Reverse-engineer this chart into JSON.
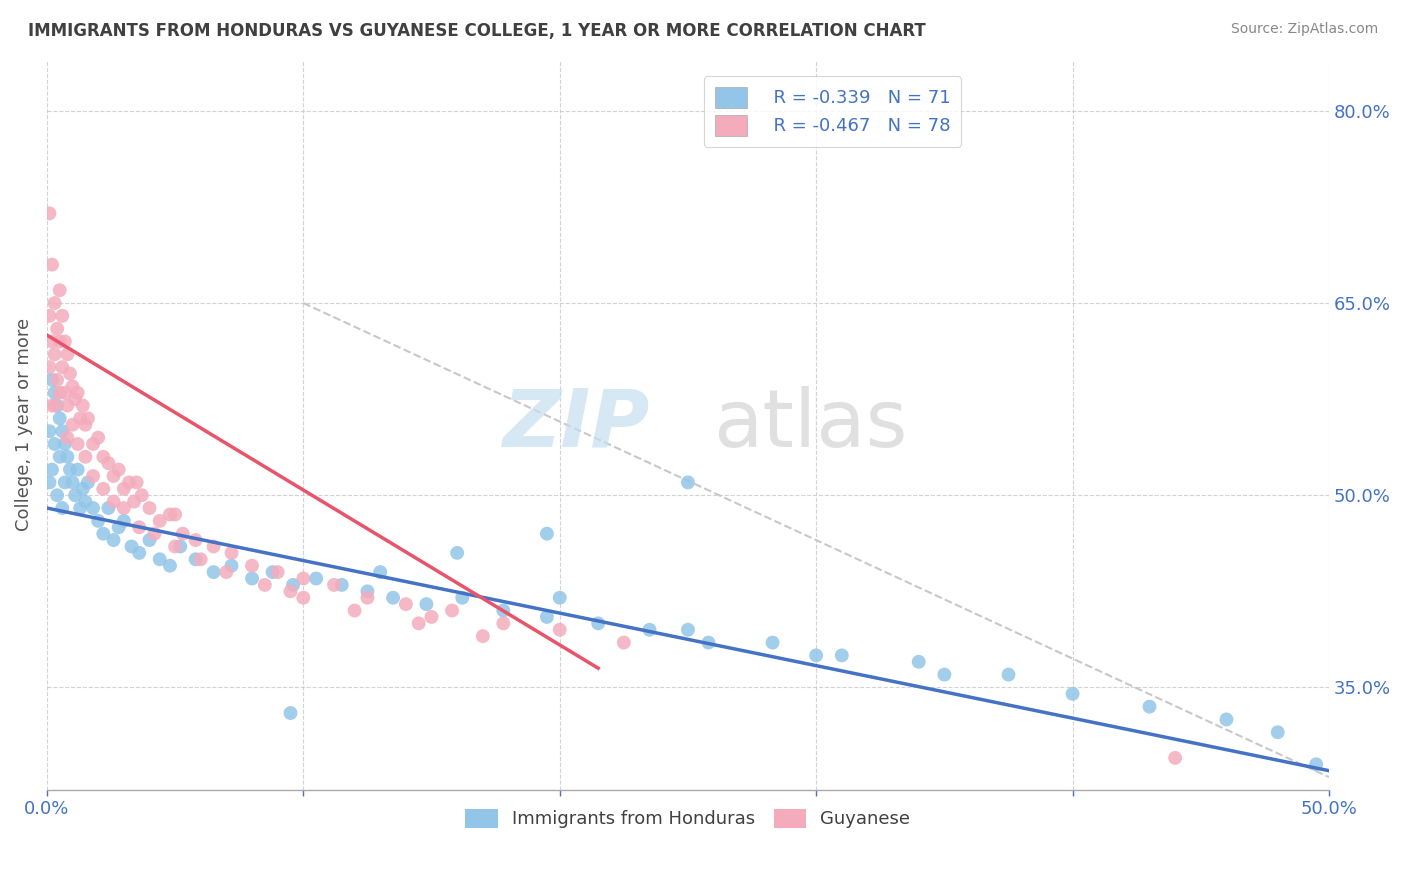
{
  "title": "IMMIGRANTS FROM HONDURAS VS GUYANESE COLLEGE, 1 YEAR OR MORE CORRELATION CHART",
  "source_text": "Source: ZipAtlas.com",
  "ylabel": "College, 1 year or more",
  "xlim": [
    0.0,
    0.5
  ],
  "ylim": [
    0.27,
    0.84
  ],
  "blue_color": "#92C5E8",
  "pink_color": "#F4ACBC",
  "blue_line_color": "#4472C4",
  "pink_line_color": "#E8546A",
  "axis_color": "#4472C4",
  "title_color": "#404040",
  "grid_color": "#C8C8C8",
  "legend_r1": "R = -0.339",
  "legend_n1": "N = 71",
  "legend_r2": "R = -0.467",
  "legend_n2": "N = 78",
  "blue_line_x0": 0.0,
  "blue_line_y0": 0.49,
  "blue_line_x1": 0.5,
  "blue_line_y1": 0.285,
  "pink_line_x0": 0.0,
  "pink_line_y0": 0.625,
  "pink_line_x1": 0.215,
  "pink_line_y1": 0.365,
  "dash_line_x0": 0.1,
  "dash_line_y0": 0.65,
  "dash_line_x1": 0.5,
  "dash_line_y1": 0.28,
  "blue_points_x": [
    0.001,
    0.001,
    0.002,
    0.002,
    0.003,
    0.003,
    0.004,
    0.004,
    0.005,
    0.005,
    0.006,
    0.006,
    0.007,
    0.007,
    0.008,
    0.009,
    0.01,
    0.011,
    0.012,
    0.013,
    0.014,
    0.015,
    0.016,
    0.018,
    0.02,
    0.022,
    0.024,
    0.026,
    0.028,
    0.03,
    0.033,
    0.036,
    0.04,
    0.044,
    0.048,
    0.052,
    0.058,
    0.065,
    0.072,
    0.08,
    0.088,
    0.096,
    0.105,
    0.115,
    0.125,
    0.135,
    0.148,
    0.162,
    0.178,
    0.195,
    0.215,
    0.235,
    0.258,
    0.283,
    0.31,
    0.34,
    0.375,
    0.2,
    0.25,
    0.3,
    0.35,
    0.4,
    0.43,
    0.46,
    0.48,
    0.495,
    0.25,
    0.195,
    0.16,
    0.13,
    0.095
  ],
  "blue_points_y": [
    0.55,
    0.51,
    0.59,
    0.52,
    0.58,
    0.54,
    0.57,
    0.5,
    0.56,
    0.53,
    0.55,
    0.49,
    0.54,
    0.51,
    0.53,
    0.52,
    0.51,
    0.5,
    0.52,
    0.49,
    0.505,
    0.495,
    0.51,
    0.49,
    0.48,
    0.47,
    0.49,
    0.465,
    0.475,
    0.48,
    0.46,
    0.455,
    0.465,
    0.45,
    0.445,
    0.46,
    0.45,
    0.44,
    0.445,
    0.435,
    0.44,
    0.43,
    0.435,
    0.43,
    0.425,
    0.42,
    0.415,
    0.42,
    0.41,
    0.405,
    0.4,
    0.395,
    0.385,
    0.385,
    0.375,
    0.37,
    0.36,
    0.42,
    0.395,
    0.375,
    0.36,
    0.345,
    0.335,
    0.325,
    0.315,
    0.29,
    0.51,
    0.47,
    0.455,
    0.44,
    0.33
  ],
  "pink_points_x": [
    0.001,
    0.001,
    0.001,
    0.002,
    0.002,
    0.002,
    0.003,
    0.003,
    0.003,
    0.004,
    0.004,
    0.005,
    0.005,
    0.005,
    0.006,
    0.006,
    0.007,
    0.007,
    0.008,
    0.008,
    0.009,
    0.01,
    0.011,
    0.012,
    0.013,
    0.014,
    0.015,
    0.016,
    0.018,
    0.02,
    0.022,
    0.024,
    0.026,
    0.028,
    0.03,
    0.032,
    0.034,
    0.037,
    0.04,
    0.044,
    0.048,
    0.053,
    0.058,
    0.065,
    0.072,
    0.08,
    0.09,
    0.1,
    0.112,
    0.125,
    0.14,
    0.158,
    0.178,
    0.2,
    0.225,
    0.008,
    0.01,
    0.012,
    0.015,
    0.018,
    0.022,
    0.026,
    0.03,
    0.036,
    0.042,
    0.05,
    0.06,
    0.07,
    0.085,
    0.1,
    0.12,
    0.145,
    0.17,
    0.05,
    0.095,
    0.15,
    0.44,
    0.035
  ],
  "pink_points_y": [
    0.72,
    0.64,
    0.6,
    0.68,
    0.62,
    0.57,
    0.65,
    0.61,
    0.57,
    0.63,
    0.59,
    0.66,
    0.62,
    0.58,
    0.64,
    0.6,
    0.62,
    0.58,
    0.61,
    0.57,
    0.595,
    0.585,
    0.575,
    0.58,
    0.56,
    0.57,
    0.555,
    0.56,
    0.54,
    0.545,
    0.53,
    0.525,
    0.515,
    0.52,
    0.505,
    0.51,
    0.495,
    0.5,
    0.49,
    0.48,
    0.485,
    0.47,
    0.465,
    0.46,
    0.455,
    0.445,
    0.44,
    0.435,
    0.43,
    0.42,
    0.415,
    0.41,
    0.4,
    0.395,
    0.385,
    0.545,
    0.555,
    0.54,
    0.53,
    0.515,
    0.505,
    0.495,
    0.49,
    0.475,
    0.47,
    0.46,
    0.45,
    0.44,
    0.43,
    0.42,
    0.41,
    0.4,
    0.39,
    0.485,
    0.425,
    0.405,
    0.295,
    0.51
  ]
}
